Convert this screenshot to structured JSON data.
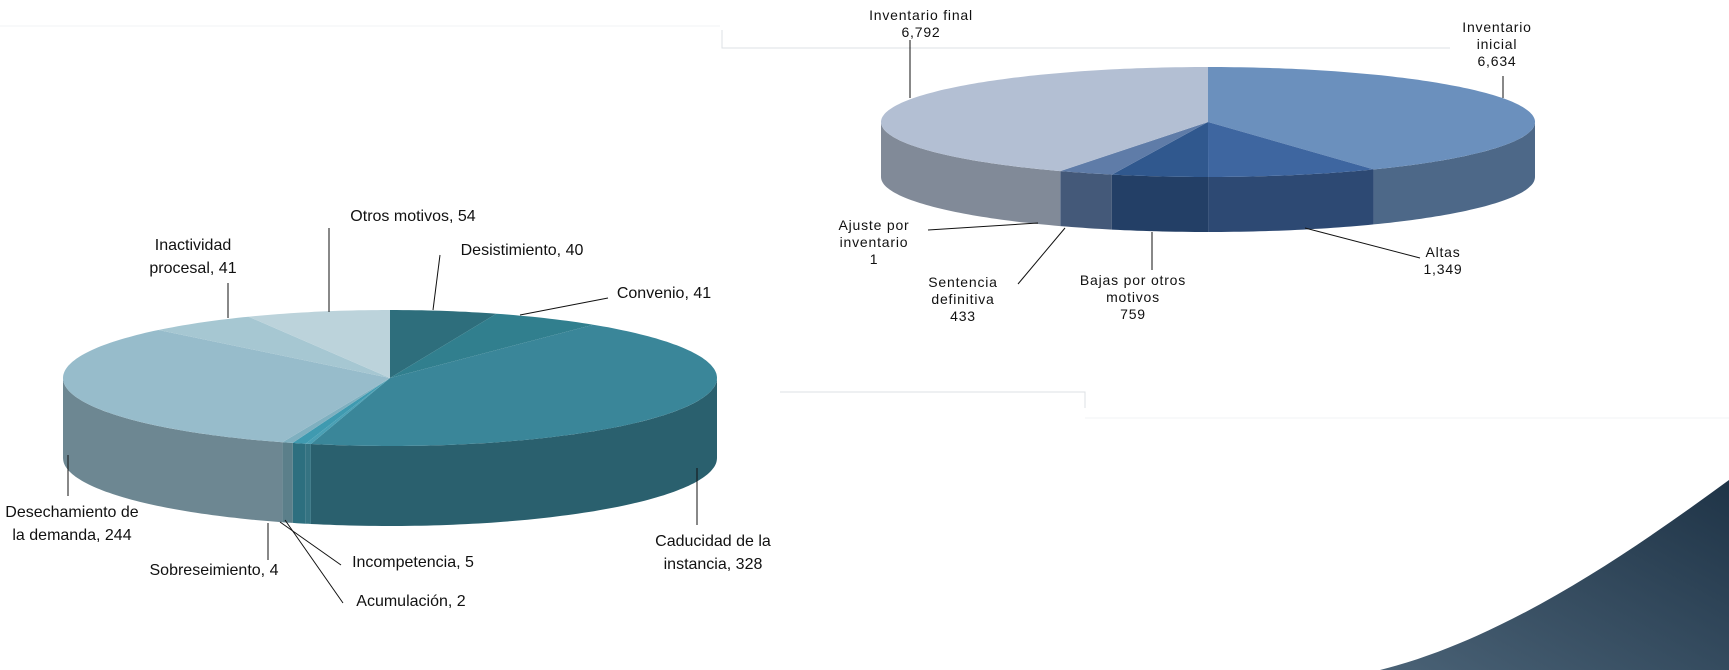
{
  "chart_data": [
    {
      "type": "pie",
      "categories": [
        "Inventario inicial",
        "Altas",
        "Bajas por otros motivos",
        "Sentencia definitiva",
        "Ajuste por inventario",
        "Inventario final"
      ],
      "values": [
        6634,
        1349,
        759,
        433,
        1,
        6792
      ],
      "value_labels": [
        "6,634",
        "1,349",
        "759",
        "433",
        "1",
        "6,792"
      ],
      "colors": [
        "#6b90bd",
        "#3e66a0",
        "#30588e",
        "#5f7ca8",
        "#7090bf",
        "#b3bfd3"
      ]
    },
    {
      "type": "pie",
      "categories": [
        "Desistimiento",
        "Convenio",
        "Caducidad de la instancia",
        "Acumulación",
        "Incompetencia",
        "Sobreseimiento",
        "Desechamiento de la demanda",
        "Inactividad procesal",
        "Otros motivos"
      ],
      "values": [
        40,
        41,
        328,
        2,
        5,
        4,
        244,
        41,
        54
      ],
      "label_separator": ",",
      "colors": [
        "#2e6e7c",
        "#317f8e",
        "#3a8699",
        "#4aa0b5",
        "#3f9ab0",
        "#7fb0c0",
        "#97bccb",
        "#a6c7d2",
        "#bcd3db"
      ]
    }
  ]
}
